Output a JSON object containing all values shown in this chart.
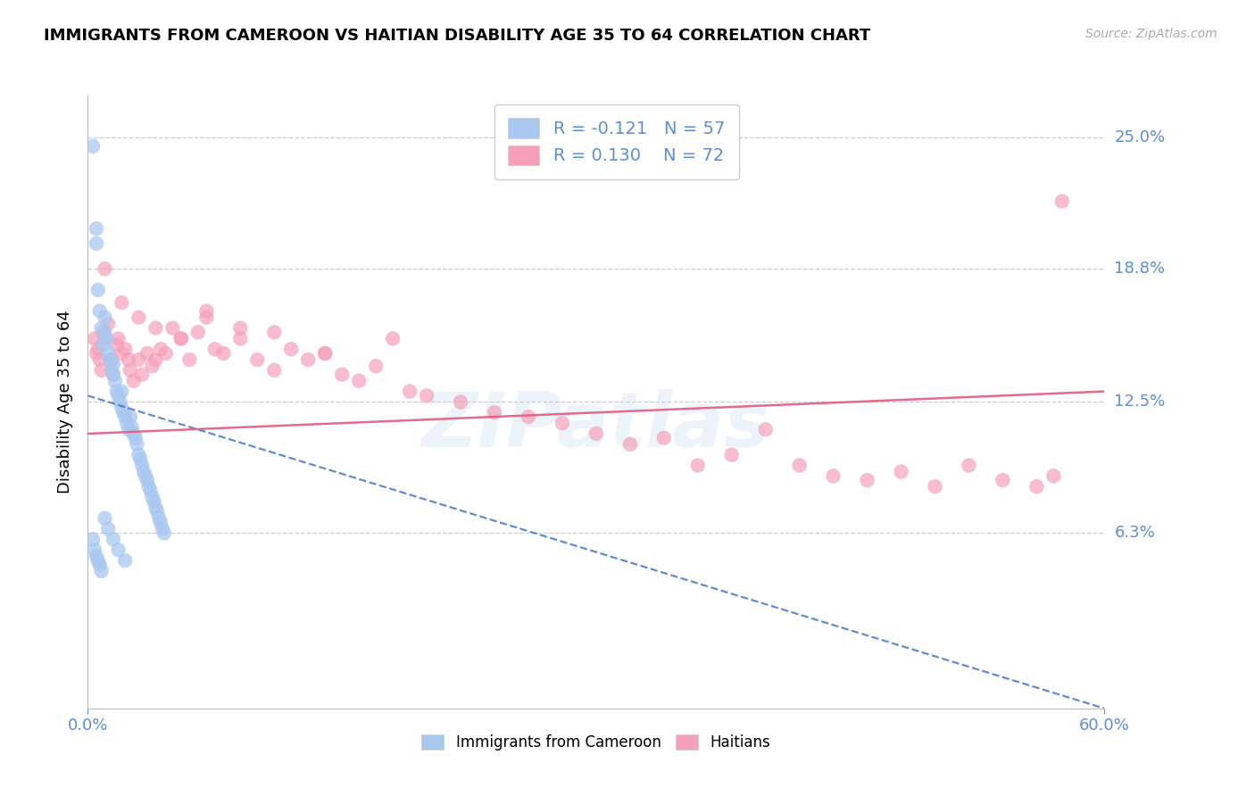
{
  "title": "IMMIGRANTS FROM CAMEROON VS HAITIAN DISABILITY AGE 35 TO 64 CORRELATION CHART",
  "source": "Source: ZipAtlas.com",
  "ylabel": "Disability Age 35 to 64",
  "xlim": [
    0.0,
    0.6
  ],
  "ylim": [
    -0.02,
    0.27
  ],
  "ytick_positions": [
    0.063,
    0.125,
    0.188,
    0.25
  ],
  "ytick_labels": [
    "6.3%",
    "12.5%",
    "18.8%",
    "25.0%"
  ],
  "xtick_positions": [
    0.0,
    0.6
  ],
  "xtick_labels": [
    "0.0%",
    "60.0%"
  ],
  "grid_color": "#cccccc",
  "background_color": "#ffffff",
  "cameroon_color": "#a8c8f0",
  "haitian_color": "#f5a0b8",
  "cameroon_line_color": "#4477cc",
  "haitian_line_color": "#e06080",
  "label_color": "#5b8dd9",
  "legend_R_cameroon": "-0.121",
  "legend_N_cameroon": "57",
  "legend_R_haitian": "0.130",
  "legend_N_haitian": "72",
  "watermark": "ZIPatlas",
  "cameroon_x": [
    0.003,
    0.005,
    0.005,
    0.006,
    0.007,
    0.008,
    0.009,
    0.01,
    0.01,
    0.011,
    0.012,
    0.013,
    0.014,
    0.015,
    0.015,
    0.016,
    0.017,
    0.018,
    0.019,
    0.02,
    0.02,
    0.021,
    0.022,
    0.023,
    0.024,
    0.025,
    0.026,
    0.027,
    0.028,
    0.029,
    0.03,
    0.031,
    0.032,
    0.033,
    0.034,
    0.035,
    0.036,
    0.037,
    0.038,
    0.039,
    0.04,
    0.041,
    0.042,
    0.043,
    0.044,
    0.045,
    0.003,
    0.004,
    0.005,
    0.006,
    0.007,
    0.008,
    0.01,
    0.012,
    0.015,
    0.018,
    0.022
  ],
  "cameroon_y": [
    0.246,
    0.207,
    0.2,
    0.178,
    0.168,
    0.16,
    0.152,
    0.158,
    0.165,
    0.155,
    0.148,
    0.145,
    0.14,
    0.143,
    0.138,
    0.135,
    0.13,
    0.128,
    0.125,
    0.13,
    0.122,
    0.12,
    0.118,
    0.115,
    0.112,
    0.118,
    0.113,
    0.11,
    0.108,
    0.105,
    0.1,
    0.098,
    0.095,
    0.092,
    0.09,
    0.088,
    0.085,
    0.083,
    0.08,
    0.078,
    0.075,
    0.073,
    0.07,
    0.068,
    0.065,
    0.063,
    0.06,
    0.055,
    0.052,
    0.05,
    0.048,
    0.045,
    0.07,
    0.065,
    0.06,
    0.055,
    0.05
  ],
  "haitian_x": [
    0.004,
    0.005,
    0.006,
    0.007,
    0.008,
    0.009,
    0.01,
    0.012,
    0.014,
    0.015,
    0.017,
    0.018,
    0.02,
    0.022,
    0.024,
    0.025,
    0.027,
    0.03,
    0.032,
    0.035,
    0.038,
    0.04,
    0.043,
    0.046,
    0.05,
    0.055,
    0.06,
    0.065,
    0.07,
    0.075,
    0.08,
    0.09,
    0.1,
    0.11,
    0.12,
    0.13,
    0.14,
    0.15,
    0.16,
    0.17,
    0.18,
    0.19,
    0.2,
    0.22,
    0.24,
    0.26,
    0.28,
    0.3,
    0.32,
    0.34,
    0.36,
    0.38,
    0.4,
    0.42,
    0.44,
    0.46,
    0.48,
    0.5,
    0.52,
    0.54,
    0.56,
    0.57,
    0.01,
    0.02,
    0.03,
    0.04,
    0.055,
    0.07,
    0.09,
    0.11,
    0.14,
    0.575
  ],
  "haitian_y": [
    0.155,
    0.148,
    0.15,
    0.145,
    0.14,
    0.158,
    0.155,
    0.162,
    0.145,
    0.138,
    0.152,
    0.155,
    0.148,
    0.15,
    0.145,
    0.14,
    0.135,
    0.145,
    0.138,
    0.148,
    0.142,
    0.145,
    0.15,
    0.148,
    0.16,
    0.155,
    0.145,
    0.158,
    0.165,
    0.15,
    0.148,
    0.155,
    0.145,
    0.14,
    0.15,
    0.145,
    0.148,
    0.138,
    0.135,
    0.142,
    0.155,
    0.13,
    0.128,
    0.125,
    0.12,
    0.118,
    0.115,
    0.11,
    0.105,
    0.108,
    0.095,
    0.1,
    0.112,
    0.095,
    0.09,
    0.088,
    0.092,
    0.085,
    0.095,
    0.088,
    0.085,
    0.09,
    0.188,
    0.172,
    0.165,
    0.16,
    0.155,
    0.168,
    0.16,
    0.158,
    0.148,
    0.22
  ],
  "cam_trend_x0": 0.0,
  "cam_trend_y0": 0.128,
  "cam_trend_x1": 0.6,
  "cam_trend_y1": -0.02,
  "hat_trend_x0": 0.0,
  "hat_trend_y0": 0.11,
  "hat_trend_x1": 0.6,
  "hat_trend_y1": 0.13
}
